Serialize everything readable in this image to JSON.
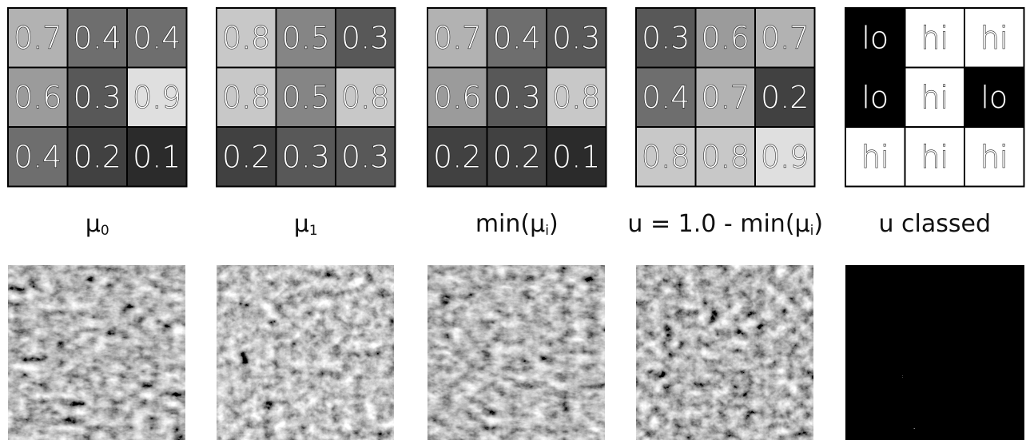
{
  "panels": [
    {
      "label": [
        "μ",
        "0"
      ],
      "cells": [
        [
          0.7,
          0.4,
          0.4
        ],
        [
          0.6,
          0.3,
          0.9
        ],
        [
          0.4,
          0.2,
          0.1
        ]
      ]
    },
    {
      "label": [
        "μ",
        "1"
      ],
      "cells": [
        [
          0.8,
          0.5,
          0.3
        ],
        [
          0.8,
          0.5,
          0.8
        ],
        [
          0.2,
          0.3,
          0.3
        ]
      ]
    },
    {
      "label": [
        "min(μ",
        "i",
        ")"
      ],
      "cells": [
        [
          0.7,
          0.4,
          0.3
        ],
        [
          0.6,
          0.3,
          0.8
        ],
        [
          0.2,
          0.2,
          0.1
        ]
      ]
    },
    {
      "label": [
        "u = 1.0 - min(μ",
        "i",
        ")"
      ],
      "cells": [
        [
          0.3,
          0.6,
          0.7
        ],
        [
          0.4,
          0.7,
          0.2
        ],
        [
          0.8,
          0.8,
          0.9
        ]
      ]
    },
    {
      "label": [
        "u classed"
      ],
      "cells": [
        [
          "lo",
          "hi",
          "hi"
        ],
        [
          "lo",
          "hi",
          "lo"
        ],
        [
          "hi",
          "hi",
          "hi"
        ]
      ]
    }
  ],
  "classes": {
    "lo": "#000000",
    "hi": "#ffffff"
  }
}
